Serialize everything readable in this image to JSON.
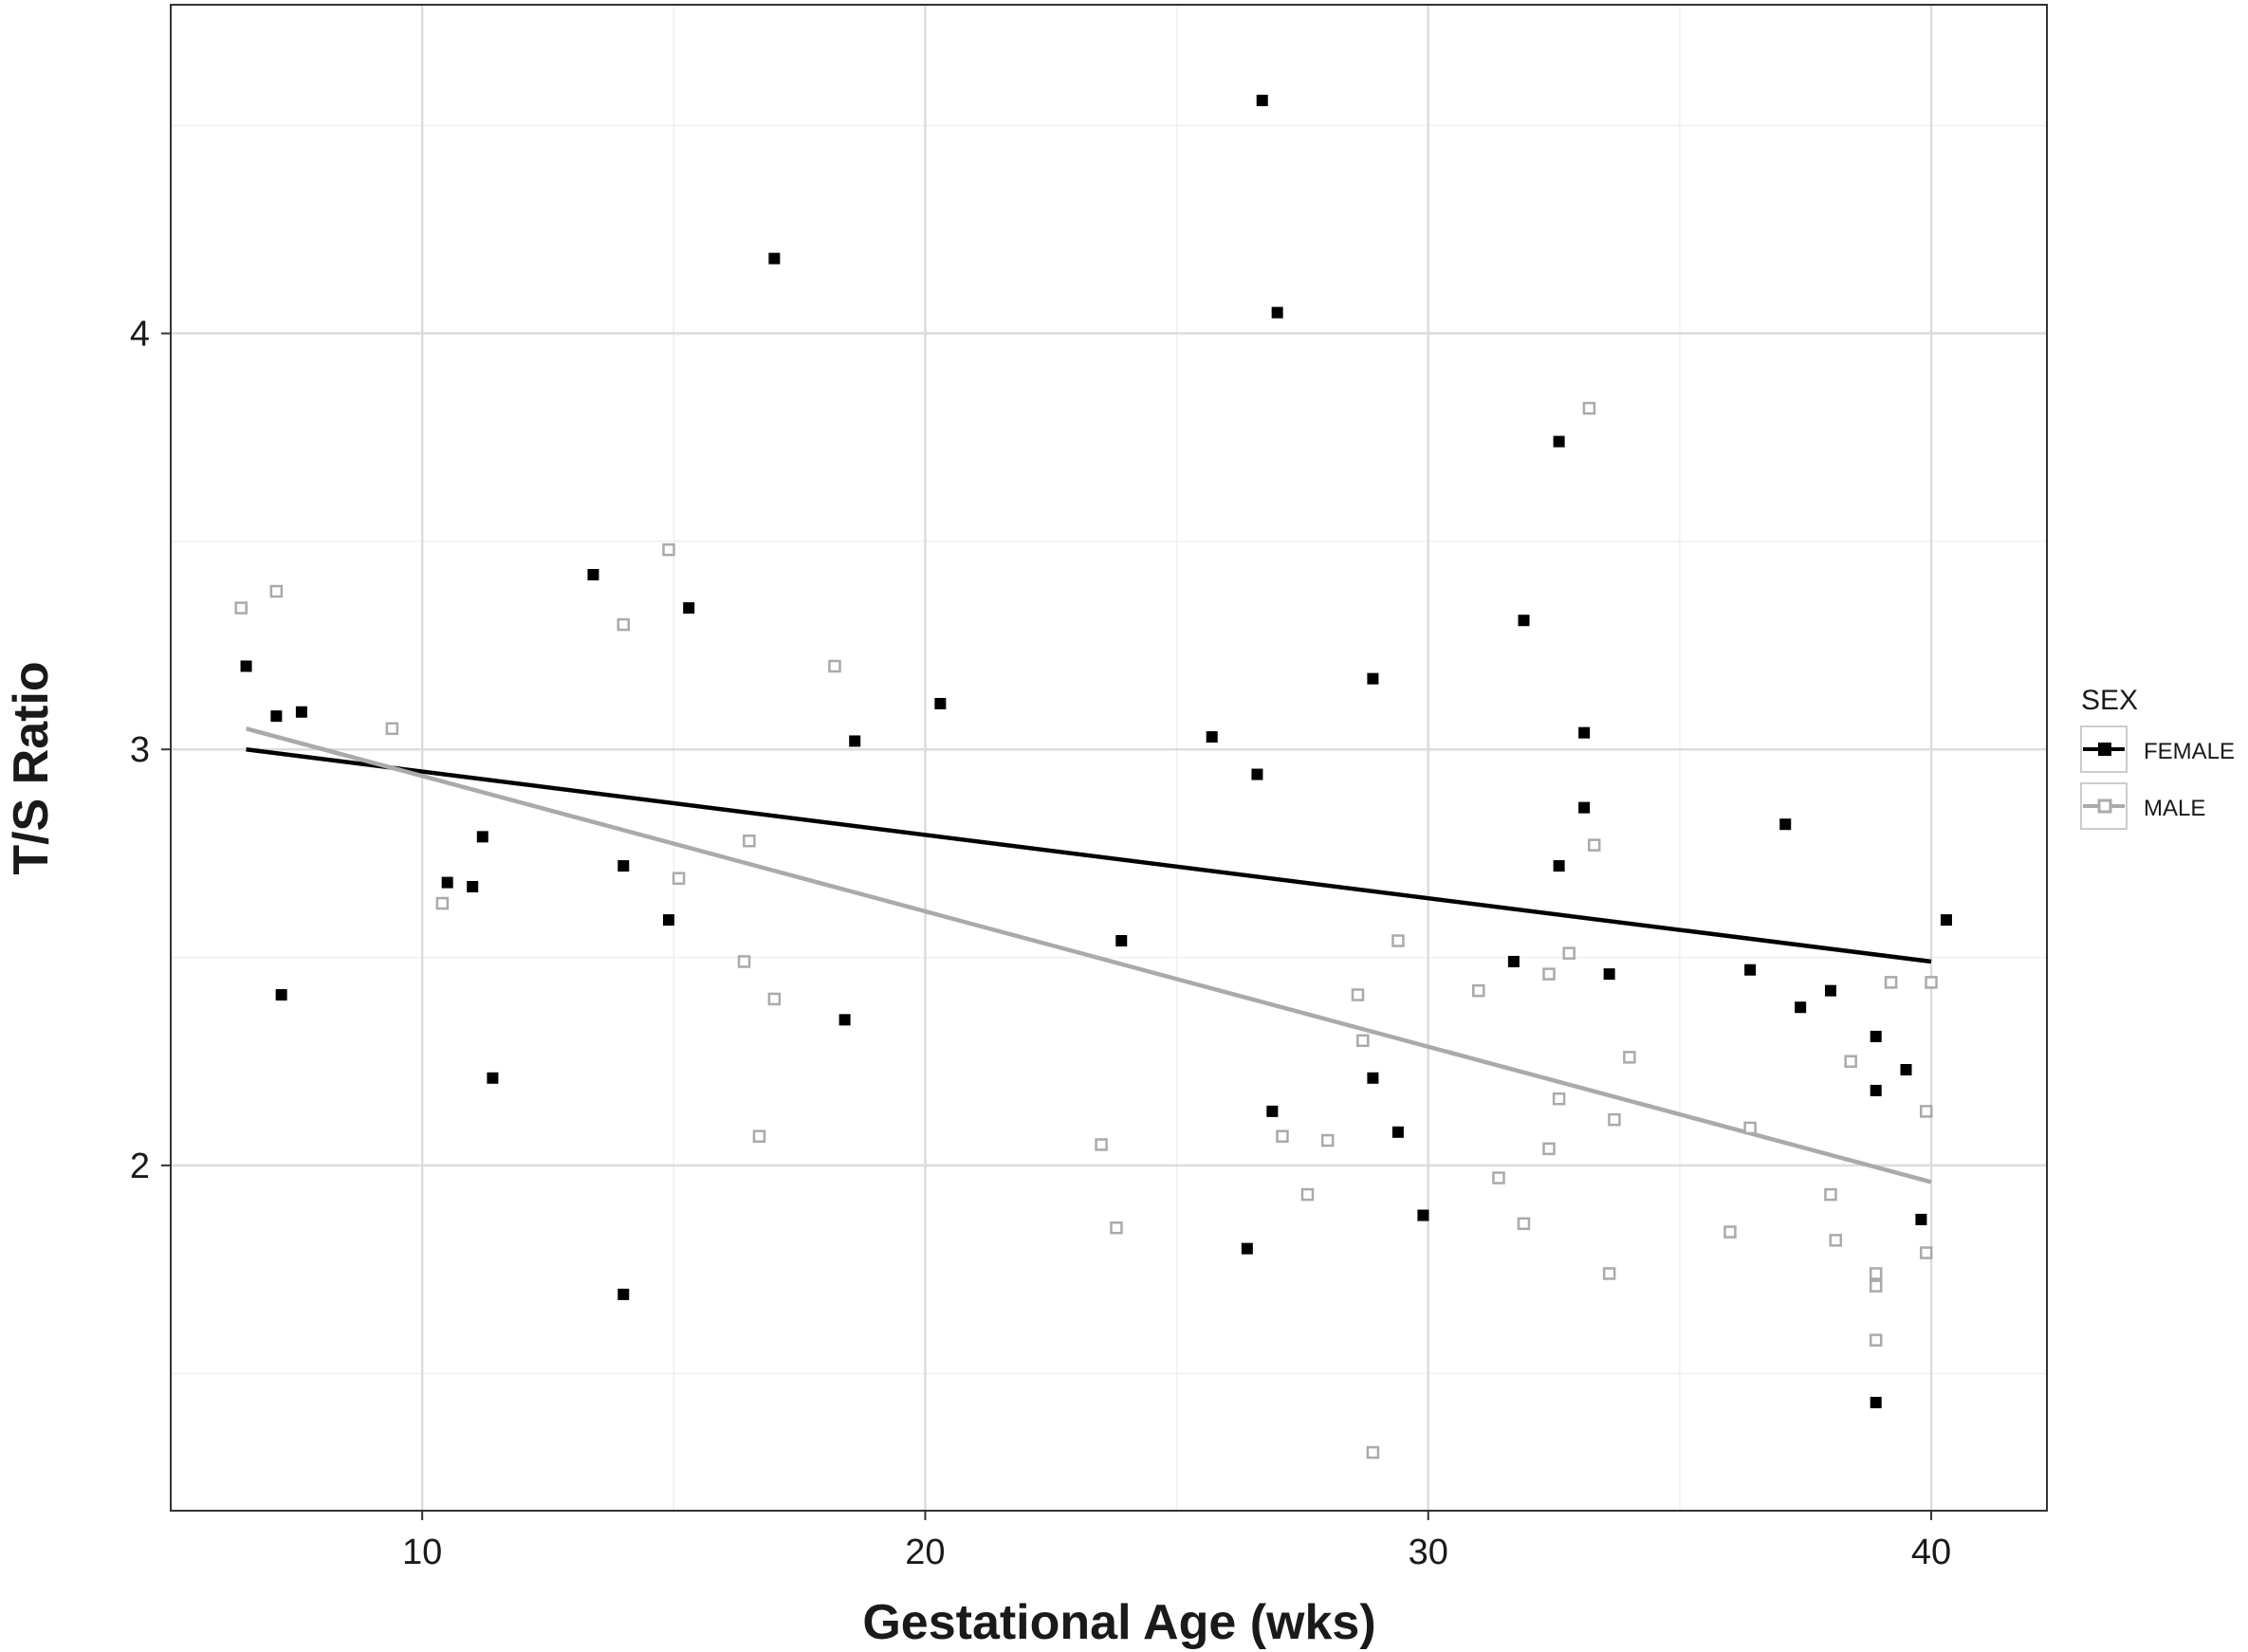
{
  "chart_data": {
    "type": "scatter",
    "title": "",
    "xlabel": "Gestational Age (wks)",
    "ylabel": "T/S Ratio",
    "xlim": [
      5,
      42.3
    ],
    "ylim": [
      1.17,
      4.79
    ],
    "x_ticks": [
      10,
      20,
      30,
      40
    ],
    "y_ticks": [
      2,
      3,
      4
    ],
    "grid": true,
    "legend": {
      "title": "SEX",
      "position": "right"
    },
    "series": [
      {
        "name": "FEMALE",
        "color": "#000000",
        "marker": "filled-square",
        "points": [
          [
            6.5,
            3.2
          ],
          [
            7.1,
            3.08
          ],
          [
            7.2,
            2.41
          ],
          [
            7.6,
            3.09
          ],
          [
            10.5,
            2.68
          ],
          [
            11.0,
            2.67
          ],
          [
            11.2,
            2.79
          ],
          [
            11.4,
            2.21
          ],
          [
            13.4,
            3.42
          ],
          [
            14.0,
            2.72
          ],
          [
            14.0,
            1.69
          ],
          [
            14.9,
            2.59
          ],
          [
            15.3,
            3.34
          ],
          [
            17.0,
            4.18
          ],
          [
            18.4,
            2.35
          ],
          [
            18.6,
            3.02
          ],
          [
            20.3,
            3.11
          ],
          [
            23.9,
            2.54
          ],
          [
            25.7,
            3.03
          ],
          [
            26.4,
            1.8
          ],
          [
            26.6,
            2.94
          ],
          [
            26.7,
            4.56
          ],
          [
            26.9,
            2.13
          ],
          [
            27.0,
            4.05
          ],
          [
            28.9,
            3.17
          ],
          [
            28.9,
            2.21
          ],
          [
            29.4,
            2.08
          ],
          [
            29.9,
            1.88
          ],
          [
            31.7,
            2.49
          ],
          [
            31.9,
            3.31
          ],
          [
            32.6,
            2.72
          ],
          [
            32.6,
            3.74
          ],
          [
            33.1,
            3.04
          ],
          [
            33.1,
            2.86
          ],
          [
            33.6,
            2.46
          ],
          [
            36.4,
            2.47
          ],
          [
            37.1,
            2.82
          ],
          [
            37.4,
            2.38
          ],
          [
            38.0,
            2.42
          ],
          [
            38.9,
            2.31
          ],
          [
            38.9,
            2.18
          ],
          [
            38.9,
            1.43
          ],
          [
            39.5,
            2.23
          ],
          [
            39.8,
            1.87
          ],
          [
            40.3,
            2.59
          ]
        ],
        "trend": [
          [
            6.5,
            3.0
          ],
          [
            40.0,
            2.49
          ]
        ]
      },
      {
        "name": "MALE",
        "color": "#aaaaaa",
        "marker": "hollow-square",
        "points": [
          [
            6.4,
            3.34
          ],
          [
            7.1,
            3.38
          ],
          [
            9.4,
            3.05
          ],
          [
            10.4,
            2.63
          ],
          [
            14.0,
            3.3
          ],
          [
            14.9,
            3.48
          ],
          [
            15.1,
            2.69
          ],
          [
            16.4,
            2.49
          ],
          [
            16.5,
            2.78
          ],
          [
            16.7,
            2.07
          ],
          [
            17.0,
            2.4
          ],
          [
            18.2,
            3.2
          ],
          [
            23.5,
            2.05
          ],
          [
            23.8,
            1.85
          ],
          [
            27.1,
            2.07
          ],
          [
            27.6,
            1.93
          ],
          [
            28.0,
            2.06
          ],
          [
            28.6,
            2.41
          ],
          [
            28.7,
            2.3
          ],
          [
            28.9,
            1.31
          ],
          [
            29.4,
            2.54
          ],
          [
            31.0,
            2.42
          ],
          [
            31.4,
            1.97
          ],
          [
            31.9,
            1.86
          ],
          [
            32.4,
            2.46
          ],
          [
            32.4,
            2.04
          ],
          [
            32.6,
            2.16
          ],
          [
            32.8,
            2.51
          ],
          [
            33.2,
            3.82
          ],
          [
            33.3,
            2.77
          ],
          [
            33.6,
            1.74
          ],
          [
            33.7,
            2.11
          ],
          [
            34.0,
            2.26
          ],
          [
            36.0,
            1.84
          ],
          [
            36.4,
            2.09
          ],
          [
            38.0,
            1.93
          ],
          [
            38.1,
            1.82
          ],
          [
            38.4,
            2.25
          ],
          [
            38.9,
            1.74
          ],
          [
            38.9,
            1.71
          ],
          [
            38.9,
            1.58
          ],
          [
            39.2,
            2.44
          ],
          [
            39.9,
            2.13
          ],
          [
            39.9,
            1.79
          ],
          [
            40.0,
            2.44
          ]
        ],
        "trend": [
          [
            6.5,
            3.05
          ],
          [
            40.0,
            1.96
          ]
        ]
      }
    ]
  }
}
